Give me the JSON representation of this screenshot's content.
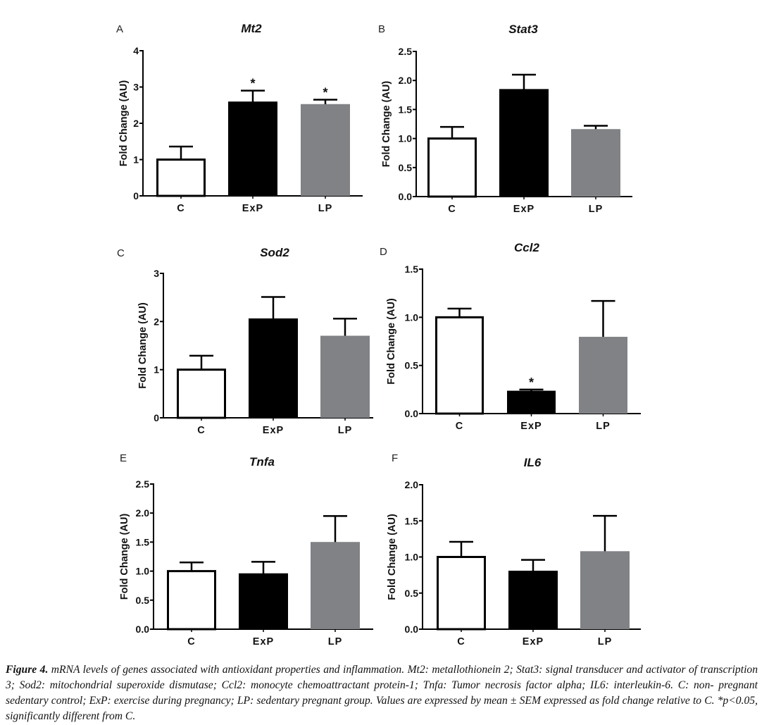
{
  "chart_data": [
    {
      "type": "bar",
      "panel": "A",
      "title": "Mt2",
      "xlabel": "",
      "ylabel": "Fold  Change (AU)",
      "categories": [
        "C",
        "ExP",
        "LP"
      ],
      "values": [
        1.0,
        2.58,
        2.51
      ],
      "errors": [
        0.36,
        0.32,
        0.14
      ],
      "significant": [
        false,
        true,
        true
      ],
      "ylim": [
        0,
        4
      ],
      "yticks": [
        0,
        1,
        2,
        3,
        4
      ],
      "ytick_labels": [
        "0",
        "1",
        "2",
        "3",
        "4"
      ],
      "grid": false
    },
    {
      "type": "bar",
      "panel": "B",
      "title": "Stat3",
      "xlabel": "",
      "ylabel": "Fold  Change (AU)",
      "categories": [
        "C",
        "ExP",
        "LP"
      ],
      "values": [
        1.0,
        1.84,
        1.15
      ],
      "errors": [
        0.2,
        0.26,
        0.07
      ],
      "significant": [
        false,
        false,
        false
      ],
      "ylim": [
        0,
        2.5
      ],
      "yticks": [
        0,
        0.5,
        1.0,
        1.5,
        2.0,
        2.5
      ],
      "ytick_labels": [
        "0.0",
        "0.5",
        "1.0",
        "1.5",
        "2.0",
        "2.5"
      ],
      "grid": false
    },
    {
      "type": "bar",
      "panel": "C",
      "title": "Sod2",
      "xlabel": "",
      "ylabel": "Fold  Change (AU)",
      "categories": [
        "C",
        "ExP",
        "LP"
      ],
      "values": [
        1.0,
        2.05,
        1.69
      ],
      "errors": [
        0.29,
        0.46,
        0.37
      ],
      "significant": [
        false,
        false,
        false
      ],
      "ylim": [
        0,
        3
      ],
      "yticks": [
        0,
        1,
        2,
        3
      ],
      "ytick_labels": [
        "0",
        "1",
        "2",
        "3"
      ],
      "grid": false
    },
    {
      "type": "bar",
      "panel": "D",
      "title": "Ccl2",
      "xlabel": "",
      "ylabel": "Fold  Change (AU)",
      "categories": [
        "C",
        "ExP",
        "LP"
      ],
      "values": [
        1.0,
        0.23,
        0.79
      ],
      "errors": [
        0.09,
        0.02,
        0.38
      ],
      "significant": [
        false,
        true,
        false
      ],
      "ylim": [
        0,
        1.5
      ],
      "yticks": [
        0,
        0.5,
        1.0,
        1.5
      ],
      "ytick_labels": [
        "0.0",
        "0.5",
        "1.0",
        "1.5"
      ],
      "grid": false
    },
    {
      "type": "bar",
      "panel": "E",
      "title": "Tnfa",
      "xlabel": "",
      "ylabel": "Fold Change (AU)",
      "categories": [
        "C",
        "ExP",
        "LP"
      ],
      "values": [
        1.0,
        0.95,
        1.49
      ],
      "errors": [
        0.15,
        0.21,
        0.46
      ],
      "significant": [
        false,
        false,
        false
      ],
      "ylim": [
        0,
        2.5
      ],
      "yticks": [
        0,
        0.5,
        1.0,
        1.5,
        2.0,
        2.5
      ],
      "ytick_labels": [
        "0.0",
        "0.5",
        "1.0",
        "1.5",
        "2.0",
        "2.5"
      ],
      "grid": false
    },
    {
      "type": "bar",
      "panel": "F",
      "title": "IL6",
      "xlabel": "",
      "ylabel": "Fold Change (AU)",
      "categories": [
        "C",
        "ExP",
        "LP"
      ],
      "values": [
        1.0,
        0.8,
        1.07
      ],
      "errors": [
        0.21,
        0.16,
        0.5
      ],
      "significant": [
        false,
        false,
        false
      ],
      "ylim": [
        0,
        2.0
      ],
      "yticks": [
        0,
        0.5,
        1.0,
        1.5,
        2.0
      ],
      "ytick_labels": [
        "0.0",
        "0.5",
        "1.0",
        "1.5",
        "2.0"
      ],
      "grid": false
    }
  ],
  "series_colors": {
    "C": "#ffffff",
    "ExP": "#000000",
    "LP": "#808285"
  },
  "significance_marker": "*",
  "caption": {
    "label": "Figure 4.",
    "text": " mRNA levels of genes associated with antioxidant properties and inflammation. Mt2: metallothionein 2; Stat3: signal transducer and activator of transcription 3; Sod2: mitochondrial superoxide dismutase; Ccl2: monocyte chemoattractant protein-1; Tnfa: Tumor necrosis factor alpha; IL6: interleukin-6. C: non- pregnant sedentary control; ExP: exercise during pregnancy; LP: sedentary pregnant group. Values are expressed by mean ± SEM expressed as fold change relative to C. *p<0.05, significantly different from C."
  }
}
